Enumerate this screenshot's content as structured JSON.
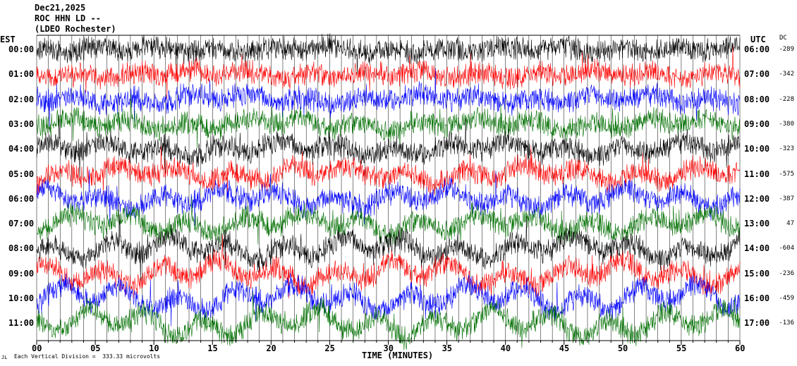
{
  "header": {
    "date": "Dec21,2025",
    "station": "ROC HHN LD --",
    "location": "(LDEO Rochester)"
  },
  "chart_data": {
    "type": "helicorder",
    "left_axis_label": "EST",
    "right_axis_label": "UTC",
    "dc_label": "DC",
    "xlabel": "TIME (MINUTES)",
    "xlim": [
      0,
      60
    ],
    "x_ticks": [
      "00",
      "05",
      "10",
      "15",
      "20",
      "25",
      "30",
      "35",
      "40",
      "45",
      "50",
      "55",
      "60"
    ],
    "rows": [
      {
        "est": "00:00",
        "utc": "06:00",
        "dc": "-289",
        "color": "#000000"
      },
      {
        "est": "01:00",
        "utc": "07:00",
        "dc": "-342",
        "color": "#ff0000"
      },
      {
        "est": "02:00",
        "utc": "08:00",
        "dc": "-228",
        "color": "#0000ff"
      },
      {
        "est": "03:00",
        "utc": "09:00",
        "dc": "-380",
        "color": "#007000"
      },
      {
        "est": "04:00",
        "utc": "10:00",
        "dc": "-323",
        "color": "#000000"
      },
      {
        "est": "05:00",
        "utc": "11:00",
        "dc": "-575",
        "color": "#ff0000"
      },
      {
        "est": "06:00",
        "utc": "12:00",
        "dc": "-387",
        "color": "#0000ff"
      },
      {
        "est": "07:00",
        "utc": "13:00",
        "dc": "47",
        "color": "#007000"
      },
      {
        "est": "08:00",
        "utc": "14:00",
        "dc": "-604",
        "color": "#000000"
      },
      {
        "est": "09:00",
        "utc": "15:00",
        "dc": "-236",
        "color": "#ff0000"
      },
      {
        "est": "10:00",
        "utc": "16:00",
        "dc": "-459",
        "color": "#0000ff"
      },
      {
        "est": "11:00",
        "utc": "17:00",
        "dc": "-136",
        "color": "#007000"
      }
    ],
    "scale_note": "Each Vertical Division =  333.33 microvolts",
    "corner_mark": "JL"
  }
}
